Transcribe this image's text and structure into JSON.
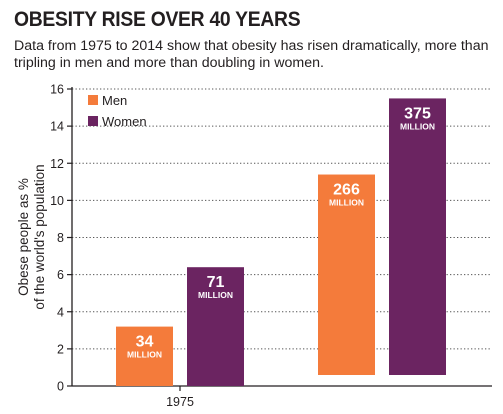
{
  "title": "OBESITY RISE OVER 40 YEARS",
  "subtitle": "Data from 1975 to 2014 show that obesity has risen dramatically, more than tripling in men and more than doubling in women.",
  "colors": {
    "men": "#f47b3b",
    "women": "#6b2461",
    "grid": "#555555",
    "text": "#231f20"
  },
  "chart_data": {
    "type": "bar",
    "title": "OBESITY RISE OVER 40 YEARS",
    "subtitle": "Data from 1975 to 2014 show that obesity has risen dramatically, more than tripling in men and more than doubling in women.",
    "ylabel": [
      "Obese people as %",
      "of the world's population"
    ],
    "xlabel": "",
    "ylim": [
      0,
      16
    ],
    "yticks": [
      0,
      2,
      4,
      6,
      8,
      10,
      12,
      14,
      16
    ],
    "grid": true,
    "legend_position": "top-left",
    "categories": [
      "1975",
      ""
    ],
    "series": [
      {
        "name": "Men",
        "color": "#f47b3b",
        "values": [
          3.2,
          10.8
        ],
        "labels": [
          "34",
          "266"
        ],
        "label_unit": "MILLION"
      },
      {
        "name": "Women",
        "color": "#6b2461",
        "values": [
          6.4,
          14.9
        ],
        "labels": [
          "71",
          "375"
        ],
        "label_unit": "MILLION"
      }
    ]
  }
}
